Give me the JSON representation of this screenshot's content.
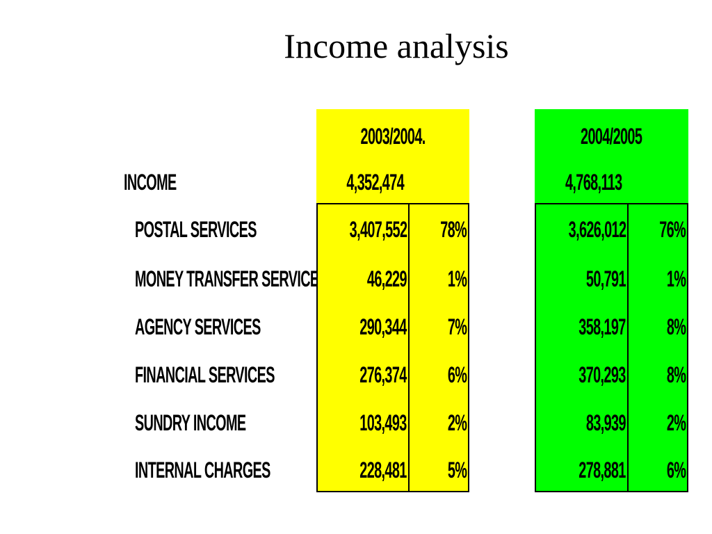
{
  "title": "Income analysis",
  "income_label": "INCOME",
  "rows": [
    {
      "label": "POSTAL SERVICES"
    },
    {
      "label": "MONEY TRANSFER SERVICES"
    },
    {
      "label": "AGENCY SERVICES"
    },
    {
      "label": "FINANCIAL SERVICES"
    },
    {
      "label": "SUNDRY INCOME"
    },
    {
      "label": "INTERNAL CHARGES"
    }
  ],
  "periods": [
    {
      "year": "2003/2004.",
      "total": "4,352,474",
      "color": "#ffff00",
      "values": [
        "3,407,552",
        "46,229",
        "290,344",
        "276,374",
        "103,493",
        "228,481"
      ],
      "percents": [
        "78%",
        "1%",
        "7%",
        "6%",
        "2%",
        "5%"
      ]
    },
    {
      "year": "2004/2005",
      "total": "4,768,113",
      "color": "#00ff00",
      "values": [
        "3,626,012",
        "50,791",
        "358,197",
        "370,293",
        "83,939",
        "278,881"
      ],
      "percents": [
        "76%",
        "1%",
        "8%",
        "8%",
        "2%",
        "6%"
      ]
    }
  ]
}
